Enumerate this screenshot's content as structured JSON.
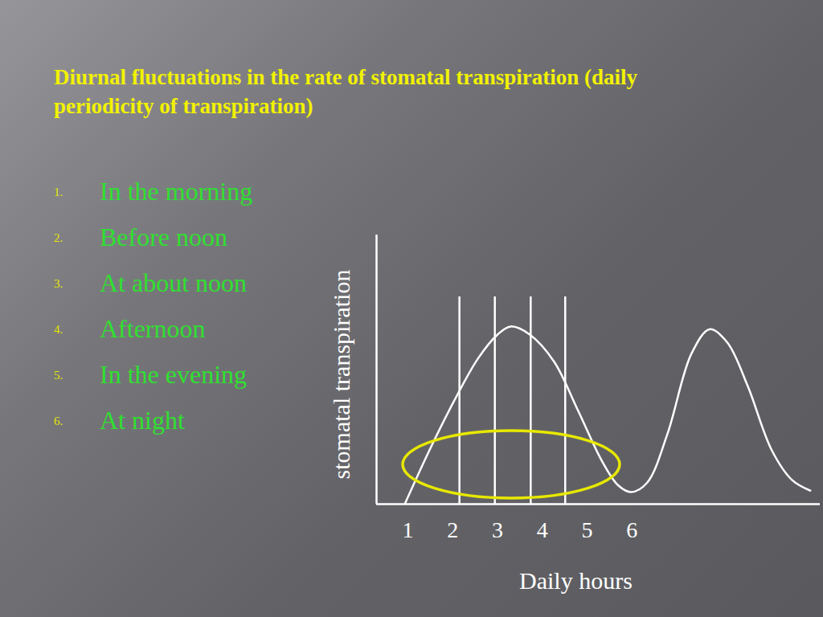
{
  "chart_data": {
    "type": "line",
    "title": "Diurnal fluctuations in the rate of stomatal transpiration (daily periodicity of transpiration)",
    "annotations": [
      {
        "number": "1.",
        "text": "In the morning"
      },
      {
        "number": "2.",
        "text": "Before noon"
      },
      {
        "number": "3.",
        "text": "At about noon"
      },
      {
        "number": "4.",
        "text": "Afternoon"
      },
      {
        "number": "5.",
        "text": "In the evening"
      },
      {
        "number": "6.",
        "text": "At night"
      }
    ],
    "x_label": "Daily hours",
    "y_label": "stomatal transpiration",
    "x": [
      0.93,
      1.48,
      2.02,
      2.56,
      3.0,
      3.29,
      3.72,
      4.26,
      4.79,
      5.33,
      5.69,
      5.98,
      6.34,
      6.79,
      7.33,
      7.74,
      8.13,
      8.58,
      9.12,
      9.57,
      9.98
    ],
    "values": [
      0,
      20,
      38,
      54,
      63,
      66,
      63,
      53,
      35,
      16,
      7,
      4.5,
      8,
      26,
      56,
      65,
      60,
      44,
      20,
      9,
      5
    ],
    "color": "#ffffff",
    "vertical_lines": {
      "x": [
        2.15,
        2.94,
        3.74,
        4.51
      ],
      "values": [
        77,
        77,
        77,
        77
      ]
    },
    "xlim": [
      0.3,
      10.2
    ],
    "ylim": [
      0,
      100
    ],
    "xticks": [
      1,
      2,
      3,
      4,
      5,
      6
    ],
    "yticks": [],
    "tick_labels": "x",
    "grid": false
  }
}
